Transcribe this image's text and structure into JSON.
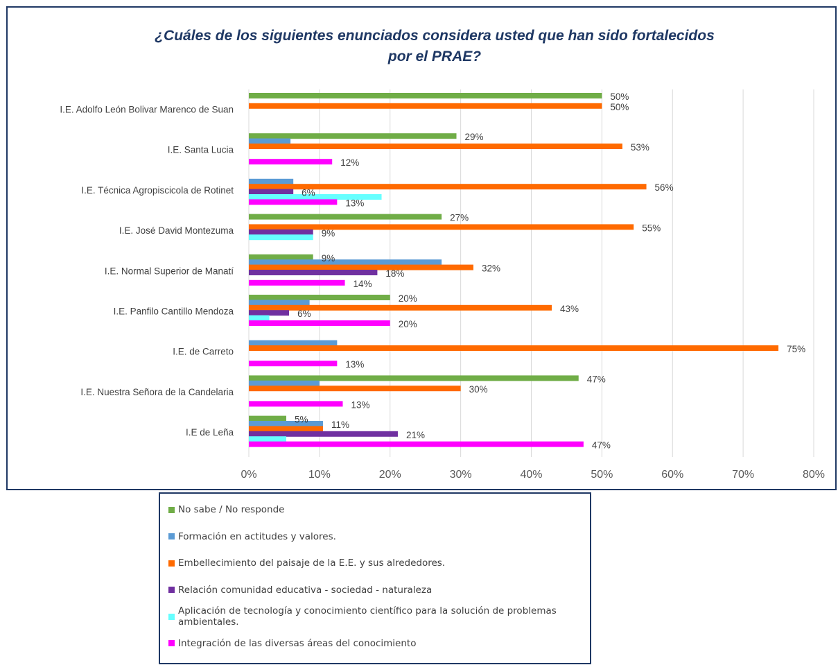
{
  "chart_data": {
    "type": "bar",
    "orientation": "horizontal",
    "title_line1": "¿Cuáles de los siguientes enunciados considera usted que han sido fortalecidos",
    "title_line2": "por el PRAE?",
    "xlim": [
      0,
      80
    ],
    "x_ticks": [
      0,
      10,
      20,
      30,
      40,
      50,
      60,
      70,
      80
    ],
    "tick_suffix": "%",
    "grid": true,
    "legend_position": "bottom",
    "categories": [
      "I.E. Adolfo León Bolivar Marenco de Suan",
      "I.E. Santa Lucia",
      "I.E. Técnica Agropiscicola de Rotinet",
      "I.E.  José David Montezuma",
      "I.E. Normal Superior de Manatí",
      "I.E. Panfilo Cantillo Mendoza",
      "I.E. de Carreto",
      "I.E. Nuestra Señora de la Candelaria",
      "I.E de Leña"
    ],
    "series": [
      {
        "name": "No sabe / No responde",
        "color": "#70ad47",
        "values": [
          50,
          29.4,
          0,
          27.3,
          9.1,
          20,
          0,
          46.7,
          5.3
        ],
        "labels": [
          "50%",
          "29%",
          "",
          "27%",
          "9%",
          "20%",
          "",
          "47%",
          "5%"
        ]
      },
      {
        "name": "Formación en actitudes y valores.",
        "color": "#5b9bd5",
        "values": [
          0,
          5.9,
          6.3,
          0,
          27.3,
          8.6,
          12.5,
          10,
          10.5
        ],
        "labels": [
          "",
          "",
          "",
          "",
          "",
          "",
          "",
          "",
          "11%"
        ]
      },
      {
        "name": "Embellecimiento del paisaje de la E.E. y sus alrededores.",
        "color": "#ff6a00",
        "values": [
          50,
          52.9,
          56.3,
          54.5,
          31.8,
          42.9,
          75,
          30,
          10.5
        ],
        "labels": [
          "50%",
          "53%",
          "56%",
          "55%",
          "32%",
          "43%",
          "75%",
          "30%",
          ""
        ]
      },
      {
        "name": "Relación comunidad educativa - sociedad - naturaleza",
        "color": "#7030a0",
        "values": [
          0,
          0,
          6.3,
          9.1,
          18.2,
          5.7,
          0,
          0,
          21.1
        ],
        "labels": [
          "",
          "",
          "6%",
          "9%",
          "18%",
          "6%",
          "",
          "",
          "21%"
        ]
      },
      {
        "name": "Aplicación de tecnología y conocimiento científico para la solución de problemas ambientales.",
        "color": "#66ffff",
        "values": [
          0,
          0,
          18.8,
          9.1,
          0,
          2.9,
          0,
          0,
          5.3
        ],
        "labels": [
          "",
          "",
          "",
          "",
          "",
          "",
          "",
          "",
          ""
        ]
      },
      {
        "name": "Integración de las diversas áreas del conocimiento",
        "color": "#ff00ff",
        "values": [
          0,
          11.8,
          12.5,
          0,
          13.6,
          20,
          12.5,
          13.3,
          47.4
        ],
        "labels": [
          "",
          "12%",
          "13%",
          "",
          "14%",
          "20%",
          "13%",
          "13%",
          "47%"
        ]
      }
    ]
  }
}
